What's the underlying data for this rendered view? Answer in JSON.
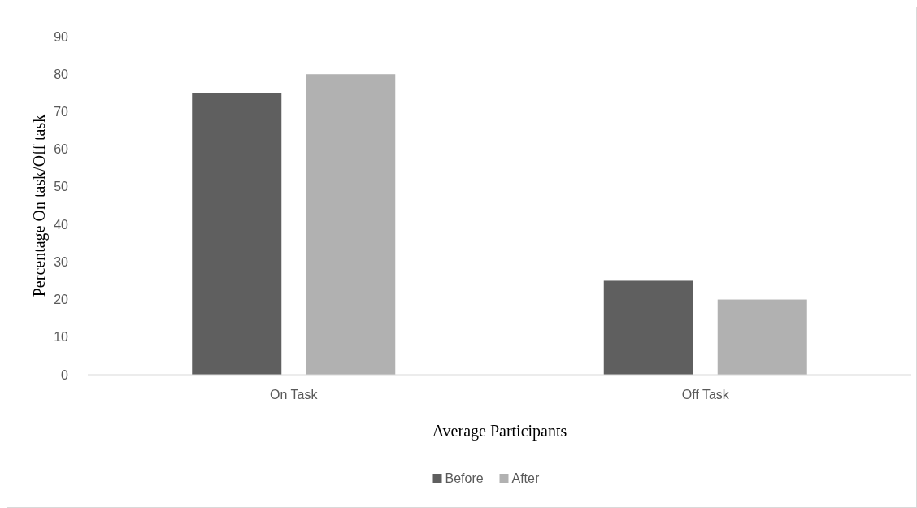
{
  "chart_data": {
    "type": "bar",
    "xlabel": "Average Participants",
    "ylabel": "Percentage On task/Off task",
    "categories": [
      "On Task",
      "Off Task"
    ],
    "series": [
      {
        "name": "Before",
        "color": "#5f5f5f",
        "values": [
          75,
          25
        ]
      },
      {
        "name": "After",
        "color": "#b1b1b1",
        "values": [
          80,
          20
        ]
      }
    ],
    "ylim": [
      0,
      90
    ],
    "yticks": [
      0,
      10,
      20,
      30,
      40,
      50,
      60,
      70,
      80,
      90
    ],
    "grid": false,
    "legend": "bottom"
  }
}
